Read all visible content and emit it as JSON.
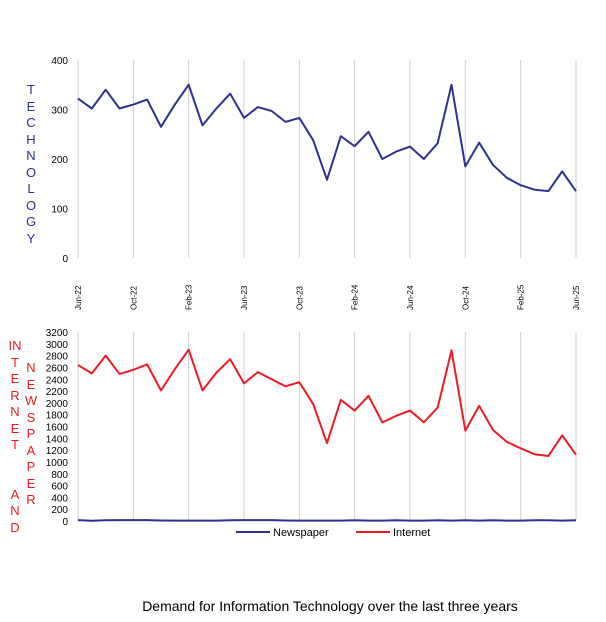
{
  "title": "Demand for Information Technology over the last three years",
  "colors": {
    "newspaper": "#2E3192",
    "internet": "#ED1C24",
    "technology_label": "#2E3192",
    "bottom_label": "#ED1C24",
    "grid": "#D0D0D0"
  },
  "chart_data": [
    {
      "type": "line",
      "ylabel": "TECHNOLOGY",
      "ylim": [
        0,
        400
      ],
      "yticks": [
        "0",
        "100",
        "200",
        "300",
        "400"
      ],
      "xtick_labels": [
        "Jun-22",
        "Oct-22",
        "Feb-23",
        "Jun-23",
        "Oct-23",
        "Feb-24",
        "Jun-24",
        "Oct-24",
        "Feb-25",
        "Jun-25"
      ],
      "series": [
        {
          "name": "Technology",
          "values": [
            322,
            302,
            340,
            302,
            310,
            320,
            265,
            310,
            350,
            268,
            302,
            332,
            283,
            305,
            297,
            275,
            283,
            238,
            158,
            246,
            226,
            255,
            200,
            215,
            225,
            200,
            232,
            350,
            185,
            233,
            188,
            162,
            147,
            138,
            135,
            175,
            135
          ]
        }
      ]
    },
    {
      "type": "line",
      "ylabel_left": "INTERNET AND",
      "ylabel_right": "NEWSPAPER",
      "ylim": [
        0,
        3200
      ],
      "yticks": [
        "0",
        "200",
        "400",
        "600",
        "800",
        "1000",
        "1200",
        "1400",
        "1600",
        "1800",
        "2000",
        "2200",
        "2400",
        "2600",
        "2800",
        "3000",
        "3200"
      ],
      "legend": [
        "Newspaper",
        "Internet"
      ],
      "legend_position": "bottom",
      "series": [
        {
          "name": "Newspaper",
          "values": [
            15,
            5,
            12,
            14,
            14,
            14,
            8,
            6,
            6,
            6,
            6,
            12,
            14,
            14,
            14,
            8,
            6,
            6,
            6,
            6,
            12,
            6,
            6,
            12,
            6,
            6,
            12,
            6,
            12,
            6,
            12,
            6,
            6,
            12,
            12,
            6,
            12
          ]
        },
        {
          "name": "Internet",
          "values": [
            2640,
            2500,
            2800,
            2490,
            2560,
            2650,
            2210,
            2570,
            2900,
            2210,
            2510,
            2740,
            2330,
            2520,
            2400,
            2280,
            2350,
            1980,
            1320,
            2050,
            1870,
            2120,
            1670,
            1780,
            1870,
            1670,
            1920,
            2890,
            1530,
            1950,
            1540,
            1340,
            1230,
            1130,
            1100,
            1450,
            1120
          ]
        }
      ]
    }
  ]
}
